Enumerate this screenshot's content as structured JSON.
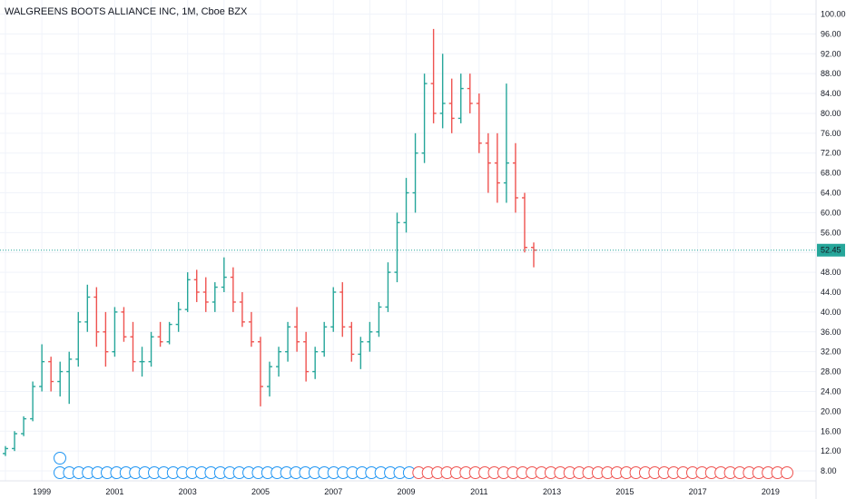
{
  "chart_data": {
    "type": "ohlc",
    "title": "WALGREENS BOOTS ALLIANCE INC, 1M, Cboe BZX",
    "x_tick_labels": [
      "1999",
      "2001",
      "2003",
      "2005",
      "2007",
      "2009",
      "2011",
      "2013",
      "2015",
      "2017",
      "2019"
    ],
    "y_tick_labels": [
      "8.00",
      "12.00",
      "16.00",
      "20.00",
      "24.00",
      "28.00",
      "32.00",
      "36.00",
      "40.00",
      "44.00",
      "48.00",
      "52.00",
      "56.00",
      "60.00",
      "64.00",
      "68.00",
      "72.00",
      "76.00",
      "80.00",
      "84.00",
      "88.00",
      "92.00",
      "96.00",
      "100.00"
    ],
    "ylim": [
      6,
      101
    ],
    "x_range": [
      1998.0,
      2019.8
    ],
    "grid": true,
    "last_price": {
      "label": "52.45",
      "value": 52.45
    },
    "x_markers": [
      1998.0,
      1999.0,
      2000.0,
      2001.0,
      2002.0,
      2003.0,
      2004.0,
      2005.0,
      2006.0,
      2007.0,
      2008.0,
      2009.0,
      2010.0,
      2011.0,
      2012.0,
      2013.0,
      2014.0,
      2015.0,
      2016.0,
      2017.0,
      2018.0,
      2019.0
    ],
    "x_marker_labels": [
      "",
      "1999",
      "",
      "2001",
      "",
      "2003",
      "",
      "2005",
      "",
      "2007",
      "",
      "2009",
      "",
      "2011",
      "",
      "2013",
      "",
      "2015",
      "",
      "2017",
      "",
      "2019"
    ],
    "series": [
      {
        "values": [
          [
            1998.0,
            11.5,
            13.0,
            11.0,
            12.5
          ],
          [
            1998.25,
            12.5,
            16.0,
            12.0,
            15.5
          ],
          [
            1998.5,
            15.5,
            19.0,
            15.0,
            18.5
          ],
          [
            1998.75,
            18.5,
            26.0,
            18.0,
            25.0
          ],
          [
            1999.0,
            25.0,
            33.5,
            24.0,
            30.0
          ],
          [
            1999.25,
            30.0,
            31.0,
            24.0,
            26.0
          ],
          [
            1999.5,
            26.0,
            30.0,
            23.0,
            28.0
          ],
          [
            1999.75,
            28.0,
            32.0,
            21.5,
            30.5
          ],
          [
            2000.0,
            30.5,
            40.0,
            29.0,
            38.0
          ],
          [
            2000.25,
            38.0,
            45.5,
            36.0,
            43.0
          ],
          [
            2000.5,
            43.0,
            45.0,
            33.0,
            36.0
          ],
          [
            2000.75,
            36.0,
            40.0,
            29.0,
            32.0
          ],
          [
            2001.0,
            32.0,
            41.0,
            31.0,
            40.0
          ],
          [
            2001.25,
            40.0,
            41.0,
            34.0,
            35.0
          ],
          [
            2001.5,
            35.0,
            38.0,
            28.0,
            30.0
          ],
          [
            2001.75,
            30.0,
            33.0,
            27.0,
            30.0
          ],
          [
            2002.0,
            30.0,
            36.0,
            29.0,
            35.0
          ],
          [
            2002.25,
            35.0,
            38.0,
            33.0,
            34.0
          ],
          [
            2002.5,
            34.0,
            38.0,
            33.5,
            37.5
          ],
          [
            2002.75,
            37.5,
            42.0,
            36.0,
            40.5
          ],
          [
            2003.0,
            40.5,
            48.0,
            40.0,
            46.5
          ],
          [
            2003.25,
            46.5,
            48.5,
            42.0,
            44.0
          ],
          [
            2003.5,
            44.0,
            47.0,
            40.0,
            42.0
          ],
          [
            2003.75,
            42.0,
            46.0,
            40.0,
            45.0
          ],
          [
            2004.0,
            45.0,
            51.0,
            44.0,
            47.0
          ],
          [
            2004.25,
            47.0,
            49.0,
            40.0,
            42.0
          ],
          [
            2004.5,
            42.0,
            44.0,
            37.0,
            38.0
          ],
          [
            2004.75,
            38.0,
            40.0,
            33.0,
            34.0
          ],
          [
            2005.0,
            34.0,
            35.0,
            21.0,
            25.0
          ],
          [
            2005.25,
            25.0,
            30.0,
            23.0,
            29.0
          ],
          [
            2005.5,
            29.0,
            33.0,
            27.0,
            32.0
          ],
          [
            2005.75,
            32.0,
            38.0,
            30.0,
            37.0
          ],
          [
            2006.0,
            37.0,
            41.0,
            32.0,
            34.0
          ],
          [
            2006.25,
            34.0,
            36.0,
            26.0,
            28.0
          ],
          [
            2006.5,
            28.0,
            33.0,
            26.5,
            32.0
          ],
          [
            2006.75,
            32.0,
            38.0,
            31.0,
            37.0
          ],
          [
            2007.0,
            37.0,
            45.0,
            36.0,
            44.0
          ],
          [
            2007.25,
            44.0,
            46.0,
            35.0,
            37.0
          ],
          [
            2007.5,
            37.0,
            38.0,
            30.0,
            31.5
          ],
          [
            2007.75,
            31.5,
            35.0,
            28.5,
            34.0
          ],
          [
            2008.0,
            34.0,
            38.0,
            32.0,
            36.0
          ],
          [
            2008.25,
            36.0,
            42.0,
            35.0,
            41.0
          ],
          [
            2008.5,
            41.0,
            50.0,
            40.0,
            48.0
          ],
          [
            2008.75,
            48.0,
            60.0,
            46.0,
            58.0
          ],
          [
            2009.0,
            58.0,
            67.0,
            56.0,
            64.0
          ],
          [
            2009.25,
            64.0,
            76.0,
            60.0,
            72.0
          ],
          [
            2009.5,
            72.0,
            88.0,
            70.0,
            86.0
          ],
          [
            2009.75,
            86.0,
            97.0,
            78.0,
            80.0
          ],
          [
            2010.0,
            80.0,
            92.0,
            77.0,
            82.0
          ],
          [
            2010.25,
            82.0,
            87.0,
            76.0,
            79.0
          ],
          [
            2010.5,
            79.0,
            88.0,
            78.0,
            85.0
          ],
          [
            2010.75,
            85.0,
            88.0,
            80.0,
            82.0
          ],
          [
            2011.0,
            82.0,
            84.0,
            72.0,
            74.0
          ],
          [
            2011.25,
            74.0,
            76.0,
            64.0,
            70.0
          ],
          [
            2011.5,
            70.0,
            76.0,
            62.0,
            66.0
          ],
          [
            2011.75,
            66.0,
            86.0,
            62.0,
            70.0
          ],
          [
            2012.0,
            70.0,
            74.0,
            60.0,
            63.0
          ],
          [
            2012.25,
            63.0,
            64.0,
            52.0,
            53.0
          ],
          [
            2012.5,
            53.0,
            54.0,
            49.0,
            52.45
          ]
        ]
      }
    ]
  }
}
